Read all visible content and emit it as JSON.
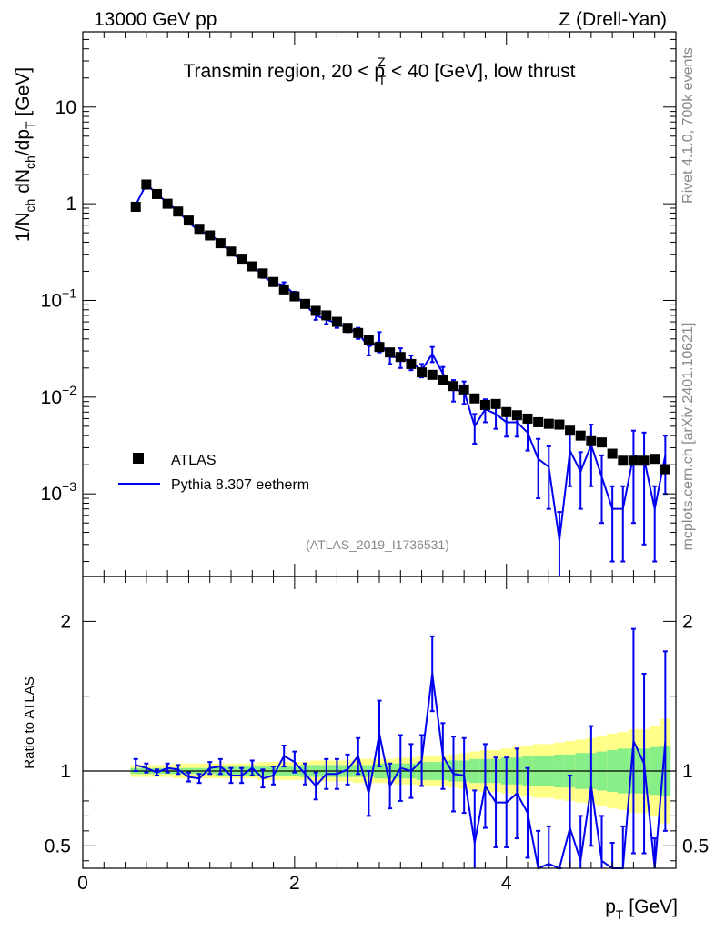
{
  "header": {
    "left": "13000 GeV pp",
    "right": "Z (Drell-Yan)"
  },
  "side_labels": {
    "rivet": "Rivet 4.1.0,  700k events",
    "mcplots": "mcplots.cern.ch [arXiv:2401.10621]"
  },
  "chart_data": [
    {
      "type": "scatter",
      "scale": "log",
      "title": "Transmin region, 20 < p_T^Z < 40 [GeV], low thrust",
      "title_parts": {
        "pre": "Transmin region, 20 < p",
        "sub": "T",
        "sup": "Z",
        "post": " < 40 [GeV], low thrust"
      },
      "ylabel": "1/N_ch dN_ch/dp_T [GeV]",
      "ylabel_parts": {
        "a": "1/N",
        "a_sub": "ch",
        "b": " dN",
        "b_sub": "ch",
        "c": "/dp",
        "c_sub": "T",
        "d": " [GeV]"
      },
      "xlabel": "p_T [GeV]",
      "xlim": [
        0,
        5.6
      ],
      "ylim": [
        0.00014,
        60
      ],
      "y_ticks": [
        {
          "value": 10,
          "label": "10",
          "exp": ""
        },
        {
          "value": 1,
          "label": "1",
          "exp": ""
        },
        {
          "value": 0.1,
          "label": "10",
          "exp": "−1"
        },
        {
          "value": 0.01,
          "label": "10",
          "exp": "−2"
        },
        {
          "value": 0.001,
          "label": "10",
          "exp": "−3"
        }
      ],
      "watermark": "(ATLAS_2019_I1736531)",
      "legend": {
        "position": "bottom-left",
        "entries": [
          "ATLAS",
          "Pythia 8.307 eetherm"
        ]
      },
      "colors": {
        "data": "#000000",
        "mc": "#0000ee"
      },
      "x": [
        0.5,
        0.6,
        0.7,
        0.8,
        0.9,
        1.0,
        1.1,
        1.2,
        1.3,
        1.4,
        1.5,
        1.6,
        1.7,
        1.8,
        1.9,
        2.0,
        2.1,
        2.2,
        2.3,
        2.4,
        2.5,
        2.6,
        2.7,
        2.8,
        2.9,
        3.0,
        3.1,
        3.2,
        3.3,
        3.4,
        3.5,
        3.6,
        3.7,
        3.8,
        3.9,
        4.0,
        4.1,
        4.2,
        4.3,
        4.4,
        4.5,
        4.6,
        4.7,
        4.8,
        4.9,
        5.0,
        5.1,
        5.2,
        5.3,
        5.4,
        5.5
      ],
      "series": [
        {
          "name": "ATLAS",
          "values": [
            0.93,
            1.58,
            1.26,
            1.0,
            0.83,
            0.67,
            0.55,
            0.47,
            0.39,
            0.32,
            0.27,
            0.225,
            0.19,
            0.155,
            0.13,
            0.11,
            0.092,
            0.078,
            0.07,
            0.06,
            0.052,
            0.046,
            0.039,
            0.033,
            0.029,
            0.026,
            0.022,
            0.018,
            0.017,
            0.015,
            0.013,
            0.012,
            0.0097,
            0.0083,
            0.0085,
            0.007,
            0.0065,
            0.006,
            0.0055,
            0.0053,
            0.0052,
            0.0045,
            0.004,
            0.0035,
            0.0034,
            0.0026,
            0.0022,
            0.0022,
            0.0022,
            0.0023,
            0.0018
          ]
        },
        {
          "name": "Pythia 8.307 eetherm",
          "values": [
            0.97,
            1.6,
            1.26,
            1.02,
            0.84,
            0.64,
            0.52,
            0.48,
            0.4,
            0.31,
            0.26,
            0.23,
            0.18,
            0.15,
            0.145,
            0.115,
            0.09,
            0.07,
            0.063,
            0.058,
            0.052,
            0.046,
            0.033,
            0.038,
            0.026,
            0.026,
            0.023,
            0.019,
            0.028,
            0.0175,
            0.012,
            0.0115,
            0.005,
            0.0075,
            0.0067,
            0.0055,
            0.0055,
            0.0043,
            0.0023,
            0.0019,
            0.00033,
            0.0028,
            0.0017,
            0.0032,
            0.0015,
            0.0007,
            0.0007,
            0.0025,
            0.0023,
            0.0007,
            0.0025
          ],
          "errors": [
            0.05,
            0.06,
            0.04,
            0.03,
            0.03,
            0.02,
            0.02,
            0.02,
            0.02,
            0.015,
            0.012,
            0.01,
            0.009,
            0.009,
            0.009,
            0.008,
            0.006,
            0.007,
            0.006,
            0.006,
            0.005,
            0.006,
            0.006,
            0.009,
            0.004,
            0.006,
            0.004,
            0.003,
            0.005,
            0.003,
            0.003,
            0.003,
            0.0017,
            0.002,
            0.002,
            0.0016,
            0.0016,
            0.0015,
            0.0014,
            0.0012,
            0.00032,
            0.0016,
            0.001,
            0.002,
            0.001,
            0.0005,
            0.0005,
            0.002,
            0.002,
            0.0005,
            0.0015
          ]
        }
      ]
    },
    {
      "type": "line",
      "ylabel": "Ratio to ATLAS",
      "xlim": [
        0,
        5.6
      ],
      "ylim": [
        0.35,
        2.3
      ],
      "x_ticks": [
        0,
        2,
        4
      ],
      "y_ticks": [
        0.5,
        1,
        2
      ],
      "reference": 1,
      "bands": {
        "x": [
          0.5,
          0.6,
          0.7,
          0.8,
          0.9,
          1.0,
          1.1,
          1.2,
          1.3,
          1.4,
          1.5,
          1.6,
          1.7,
          1.8,
          1.9,
          2.0,
          2.1,
          2.2,
          2.3,
          2.4,
          2.5,
          2.6,
          2.7,
          2.8,
          2.9,
          3.0,
          3.1,
          3.2,
          3.3,
          3.4,
          3.5,
          3.6,
          3.7,
          3.8,
          3.9,
          4.0,
          4.1,
          4.2,
          4.3,
          4.4,
          4.5,
          4.6,
          4.7,
          4.8,
          4.9,
          5.0,
          5.1,
          5.2,
          5.3,
          5.4,
          5.5
        ],
        "inner": [
          0.02,
          0.02,
          0.02,
          0.02,
          0.02,
          0.02,
          0.02,
          0.02,
          0.03,
          0.03,
          0.03,
          0.03,
          0.03,
          0.03,
          0.03,
          0.03,
          0.04,
          0.04,
          0.04,
          0.04,
          0.04,
          0.04,
          0.04,
          0.05,
          0.05,
          0.05,
          0.05,
          0.06,
          0.06,
          0.06,
          0.07,
          0.07,
          0.08,
          0.08,
          0.08,
          0.09,
          0.09,
          0.1,
          0.1,
          0.1,
          0.11,
          0.11,
          0.12,
          0.12,
          0.13,
          0.14,
          0.15,
          0.15,
          0.15,
          0.16,
          0.17
        ],
        "outer": [
          0.04,
          0.04,
          0.04,
          0.04,
          0.05,
          0.05,
          0.05,
          0.05,
          0.05,
          0.05,
          0.05,
          0.05,
          0.06,
          0.06,
          0.06,
          0.06,
          0.06,
          0.07,
          0.07,
          0.07,
          0.07,
          0.08,
          0.08,
          0.08,
          0.08,
          0.09,
          0.09,
          0.1,
          0.1,
          0.1,
          0.11,
          0.12,
          0.13,
          0.14,
          0.14,
          0.15,
          0.16,
          0.17,
          0.18,
          0.18,
          0.19,
          0.2,
          0.21,
          0.22,
          0.23,
          0.25,
          0.26,
          0.28,
          0.28,
          0.3,
          0.35
        ],
        "colors": {
          "inner": "#88ee88",
          "outer": "#ffff88"
        }
      },
      "series": [
        {
          "name": "Pythia 8.307 eetherm / ATLAS",
          "values": [
            1.04,
            1.02,
            0.99,
            1.02,
            1.01,
            0.96,
            0.95,
            1.02,
            1.03,
            0.97,
            0.97,
            1.02,
            0.95,
            0.97,
            1.1,
            1.06,
            0.98,
            0.9,
            0.98,
            0.98,
            1.01,
            1.1,
            0.85,
            1.25,
            0.9,
            1.02,
            1.0,
            1.07,
            1.65,
            1.1,
            0.98,
            0.97,
            0.52,
            0.9,
            0.79,
            0.79,
            0.85,
            0.72,
            0.3,
            0.38,
            0.06,
            0.62,
            0.4,
            0.9,
            0.4,
            0.27,
            0.33,
            1.2,
            1.05,
            0.3,
            1.2
          ],
          "errors": [
            0.04,
            0.03,
            0.02,
            0.03,
            0.03,
            0.03,
            0.03,
            0.04,
            0.05,
            0.05,
            0.05,
            0.05,
            0.06,
            0.06,
            0.07,
            0.07,
            0.07,
            0.09,
            0.1,
            0.1,
            0.1,
            0.12,
            0.15,
            0.22,
            0.15,
            0.22,
            0.18,
            0.17,
            0.25,
            0.22,
            0.25,
            0.25,
            0.35,
            0.28,
            0.3,
            0.3,
            0.3,
            0.3,
            0.3,
            0.25,
            0.1,
            0.35,
            0.3,
            0.4,
            0.3,
            0.25,
            0.3,
            0.75,
            0.6,
            0.25,
            0.6
          ]
        }
      ]
    }
  ]
}
